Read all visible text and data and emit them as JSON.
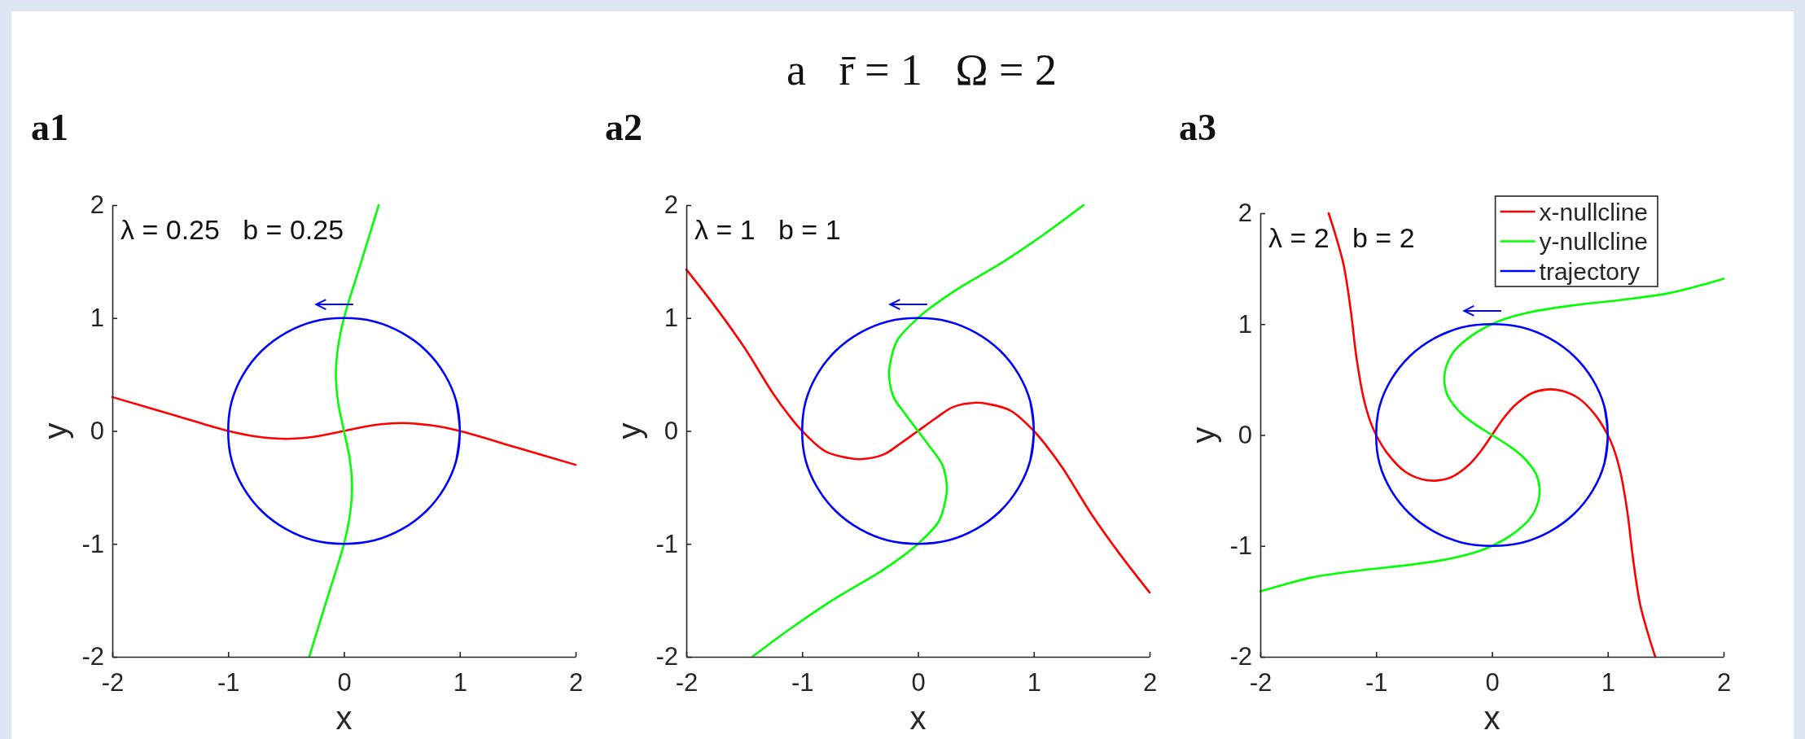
{
  "chart_data": [
    {
      "type": "line",
      "title": "a1",
      "xlabel": "x",
      "ylabel": "y",
      "xlim": [
        -2,
        2
      ],
      "ylim": [
        -2,
        2
      ],
      "xticks": [
        -2,
        -1,
        0,
        1,
        2
      ],
      "yticks": [
        -2,
        -1,
        0,
        1,
        2
      ],
      "annotations": [
        "λ = 0.25   b = 0.25"
      ],
      "series": [
        {
          "color": "#ff0000",
          "x": [
            -2,
            -1.5,
            -1,
            -0.75,
            -0.5,
            -0.25,
            0,
            0.25,
            0.5,
            0.75,
            1,
            1.5,
            2
          ],
          "values": [
            0.3,
            0.15,
            0,
            -0.05,
            -0.07,
            -0.05,
            0,
            0.05,
            0.07,
            0.05,
            0,
            -0.15,
            -0.3
          ]
        },
        {
          "color": "#00ff00",
          "x": [
            -0.3,
            -0.15,
            0,
            0.05,
            0.07,
            0.05,
            0,
            -0.05,
            -0.07,
            -0.05,
            0,
            0.15,
            0.3
          ],
          "values": [
            -2,
            -1.5,
            -1,
            -0.75,
            -0.5,
            -0.25,
            0,
            0.25,
            0.5,
            0.75,
            1,
            1.5,
            2
          ]
        },
        {
          "color": "#0000ff",
          "x": [
            0.97,
            1,
            0.97,
            0.87,
            0.71,
            0.5,
            0.26,
            0,
            -0.26,
            -0.5,
            -0.71,
            -0.87,
            -0.97,
            -1,
            -0.97,
            -0.87,
            -0.71,
            -0.5,
            -0.26,
            0,
            0.26,
            0.5,
            0.71,
            0.87,
            0.97,
            1,
            0.97
          ],
          "values": [
            -0.26,
            0,
            0.26,
            0.5,
            0.71,
            0.87,
            0.97,
            1,
            0.97,
            0.87,
            0.71,
            0.5,
            0.26,
            0,
            -0.26,
            -0.5,
            -0.71,
            -0.87,
            -0.97,
            -1,
            -0.97,
            -0.87,
            -0.71,
            -0.5,
            -0.26,
            0,
            0.26
          ]
        }
      ]
    },
    {
      "type": "line",
      "title": "a2",
      "subtitle": "a   r̄ = 1   Ω = 2",
      "xlabel": "x",
      "ylabel": "y",
      "xlim": [
        -2,
        2
      ],
      "ylim": [
        -2,
        2
      ],
      "xticks": [
        -2,
        -1,
        0,
        1,
        2
      ],
      "yticks": [
        -2,
        -1,
        0,
        1,
        2
      ],
      "annotations": [
        "λ = 1   b = 1"
      ],
      "series": [
        {
          "color": "#ff0000",
          "x": [
            -2,
            -1.75,
            -1.5,
            -1.25,
            -1.1,
            -1,
            -0.8,
            -0.6,
            -0.5,
            -0.3,
            -0.15,
            0,
            0.15,
            0.3,
            0.5,
            0.6,
            0.8,
            1,
            1.1,
            1.25,
            1.5,
            1.75,
            2
          ],
          "values": [
            1.43,
            1.1,
            0.74,
            0.33,
            0.12,
            0,
            -0.18,
            -0.24,
            -0.25,
            -0.21,
            -0.11,
            0,
            0.11,
            0.21,
            0.25,
            0.24,
            0.18,
            0,
            -0.12,
            -0.33,
            -0.74,
            -1.1,
            -1.43
          ]
        },
        {
          "color": "#00ff00",
          "x": [
            -1.43,
            -1.1,
            -0.74,
            -0.33,
            -0.12,
            0,
            0.18,
            0.24,
            0.25,
            0.21,
            0.11,
            0,
            -0.11,
            -0.21,
            -0.25,
            -0.24,
            -0.18,
            0,
            0.12,
            0.33,
            0.74,
            1.1,
            1.43
          ],
          "values": [
            -2,
            -1.75,
            -1.5,
            -1.25,
            -1.1,
            -1,
            -0.8,
            -0.6,
            -0.5,
            -0.3,
            -0.15,
            0,
            0.15,
            0.3,
            0.5,
            0.6,
            0.8,
            1,
            1.1,
            1.25,
            1.5,
            1.75,
            2
          ]
        },
        {
          "color": "#0000ff",
          "x": [
            0.97,
            1,
            0.97,
            0.87,
            0.71,
            0.5,
            0.26,
            0,
            -0.26,
            -0.5,
            -0.71,
            -0.87,
            -0.97,
            -1,
            -0.97,
            -0.87,
            -0.71,
            -0.5,
            -0.26,
            0,
            0.26,
            0.5,
            0.71,
            0.87,
            0.97,
            1,
            0.97
          ],
          "values": [
            -0.26,
            0,
            0.26,
            0.5,
            0.71,
            0.87,
            0.97,
            1,
            0.97,
            0.87,
            0.71,
            0.5,
            0.26,
            0,
            -0.26,
            -0.5,
            -0.71,
            -0.87,
            -0.97,
            -1,
            -0.97,
            -0.87,
            -0.71,
            -0.5,
            -0.26,
            0,
            0.26
          ]
        }
      ]
    },
    {
      "type": "line",
      "title": "a3",
      "xlabel": "x",
      "ylabel": "y",
      "xlim": [
        -2,
        2
      ],
      "ylim": [
        -2,
        2
      ],
      "xticks": [
        -2,
        -1,
        0,
        1,
        2
      ],
      "yticks": [
        -2,
        -1,
        0,
        1,
        2
      ],
      "annotations": [
        "λ = 2   b = 2"
      ],
      "legend": "top right",
      "series": [
        {
          "name": "x-nullcline",
          "color": "#ff0000",
          "x": [
            -1.41,
            -1.35,
            -1.28,
            -1.22,
            -1.17,
            -1.11,
            -1.05,
            -1,
            -0.9,
            -0.75,
            -0.6,
            -0.47,
            -0.35,
            -0.2,
            -0.1,
            0,
            0.1,
            0.2,
            0.35,
            0.47,
            0.6,
            0.75,
            0.9,
            1,
            1.05,
            1.11,
            1.17,
            1.22,
            1.28,
            1.35,
            1.41
          ],
          "values": [
            2,
            1.8,
            1.53,
            1.13,
            0.7,
            0.34,
            0.12,
            0,
            -0.17,
            -0.33,
            -0.4,
            -0.41,
            -0.38,
            -0.27,
            -0.15,
            0,
            0.15,
            0.27,
            0.38,
            0.41,
            0.4,
            0.33,
            0.17,
            0,
            -0.12,
            -0.34,
            -0.7,
            -1.13,
            -1.53,
            -1.8,
            -2
          ]
        },
        {
          "name": "y-nullcline",
          "color": "#00ff00",
          "x": [
            -2,
            -1.8,
            -1.53,
            -1.13,
            -0.7,
            -0.34,
            -0.12,
            0,
            0.17,
            0.33,
            0.4,
            0.41,
            0.38,
            0.27,
            0.15,
            0,
            -0.15,
            -0.27,
            -0.38,
            -0.41,
            -0.4,
            -0.33,
            -0.17,
            0,
            0.12,
            0.34,
            0.7,
            1.13,
            1.53,
            1.8,
            2
          ],
          "values": [
            -1.41,
            -1.35,
            -1.28,
            -1.22,
            -1.17,
            -1.11,
            -1.05,
            -1,
            -0.9,
            -0.75,
            -0.6,
            -0.47,
            -0.35,
            -0.2,
            -0.1,
            0,
            0.1,
            0.2,
            0.35,
            0.47,
            0.6,
            0.75,
            0.9,
            1,
            1.05,
            1.11,
            1.17,
            1.22,
            1.28,
            1.35,
            1.41
          ]
        },
        {
          "name": "trajectory",
          "color": "#0000ff",
          "x": [
            0.97,
            1,
            0.97,
            0.87,
            0.71,
            0.5,
            0.26,
            0,
            -0.26,
            -0.5,
            -0.71,
            -0.87,
            -0.97,
            -1,
            -0.97,
            -0.87,
            -0.71,
            -0.5,
            -0.26,
            0,
            0.26,
            0.5,
            0.71,
            0.87,
            0.97,
            1,
            0.97
          ],
          "values": [
            -0.26,
            0,
            0.26,
            0.5,
            0.71,
            0.87,
            0.97,
            1,
            0.97,
            0.87,
            0.71,
            0.5,
            0.26,
            0,
            -0.26,
            -0.5,
            -0.71,
            -0.87,
            -0.97,
            -1,
            -0.97,
            -0.87,
            -0.71,
            -0.5,
            -0.26,
            0,
            0.26
          ]
        }
      ]
    }
  ]
}
